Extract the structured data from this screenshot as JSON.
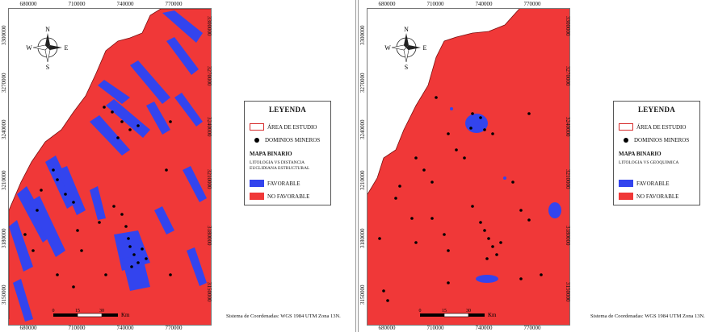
{
  "maps": [
    {
      "id": "left",
      "x_ticks": [
        "680000",
        "710000",
        "740000",
        "770000"
      ],
      "y_ticks": [
        "3300000",
        "3270000",
        "3240000",
        "3210000",
        "3180000",
        "3150000"
      ],
      "compass": {
        "n": "N",
        "s": "S",
        "e": "E",
        "w": "W"
      },
      "scale": {
        "labels": [
          "0",
          "15",
          "30"
        ],
        "unit": "Km"
      },
      "legend": {
        "title": "LEYENDA",
        "study_area": "ÁREA DE ESTUDIO",
        "mineral_domains": "DOMINIOS MINEROS",
        "binary_map": "MAPA BINARIO",
        "subtitle": "LITOLOGIA VS DISTANCIA EUCLIDIANA ESTRUCTURAL",
        "favorable": "FAVORABLE",
        "not_favorable": "NO FAVORABLE"
      },
      "crs": "Sistema de Coordenadas: WGS 1984 UTM Zona 13N.",
      "colors": {
        "favorable": "#3344ee",
        "not_favorable": "#f03838"
      }
    },
    {
      "id": "right",
      "x_ticks": [
        "680000",
        "710000",
        "740000",
        "770000"
      ],
      "y_ticks": [
        "3300000",
        "3270000",
        "3240000",
        "3210000",
        "3180000",
        "3150000"
      ],
      "compass": {
        "n": "N",
        "s": "S",
        "e": "E",
        "w": "W"
      },
      "scale": {
        "labels": [
          "0",
          "15",
          "30"
        ],
        "unit": "Km"
      },
      "legend": {
        "title": "LEYENDA",
        "study_area": "ÁREA DE ESTUDIO",
        "mineral_domains": "DOMINIOS MINEROS",
        "binary_map": "MAPA BINARIO",
        "subtitle": "LITOLOGIA VS GEOQUIMICA",
        "favorable": "FAVORABLE",
        "not_favorable": "NO FAVORABLE"
      },
      "crs": "Sistema de Coordenadas: WGS 1984 UTM Zona 13N.",
      "colors": {
        "favorable": "#3344ee",
        "not_favorable": "#f03838"
      }
    }
  ]
}
